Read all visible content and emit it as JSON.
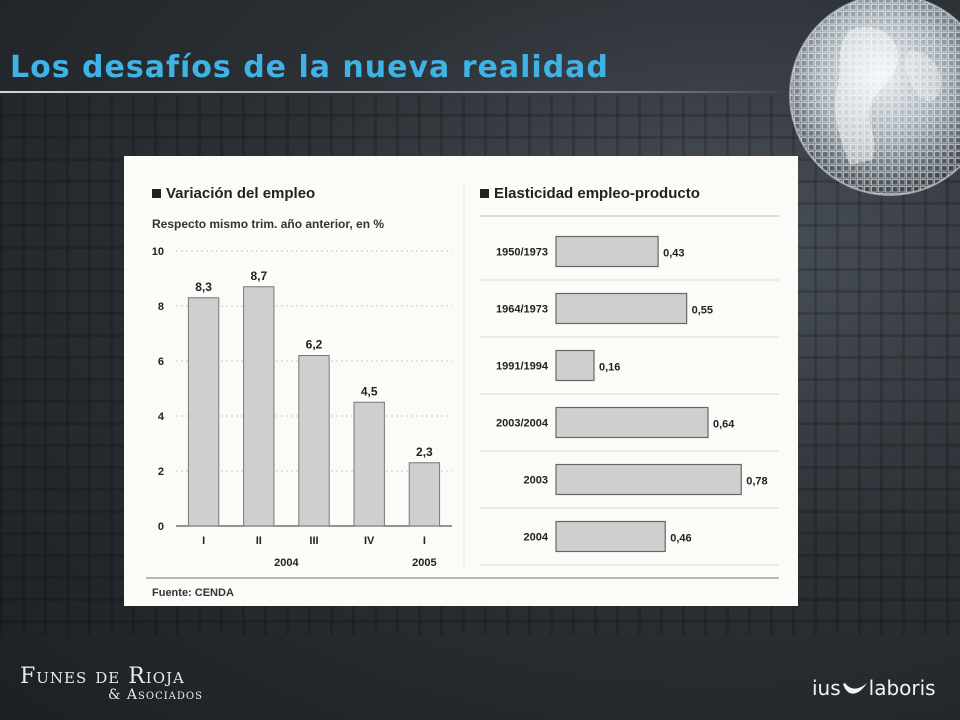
{
  "slide": {
    "title": "Los desafíos de la nueva realidad",
    "title_color": "#3fb3e6",
    "footer_left": {
      "name": "Funes de Rioja",
      "sub": "& Asociados"
    },
    "footer_right": {
      "left": "ius",
      "right": "laboris"
    }
  },
  "chart_data": [
    {
      "type": "bar",
      "title": "Variación del empleo",
      "subtitle": "Respecto mismo trim. año anterior, en %",
      "categories": [
        "I",
        "II",
        "III",
        "IV",
        "I"
      ],
      "group_labels": [
        {
          "label": "2004",
          "span": [
            0,
            3
          ]
        },
        {
          "label": "2005",
          "span": [
            4,
            4
          ]
        }
      ],
      "values": [
        8.3,
        8.7,
        6.2,
        4.5,
        2.3
      ],
      "value_labels": [
        "8,3",
        "8,7",
        "6,2",
        "4,5",
        "2,3"
      ],
      "ylim": [
        0,
        10
      ],
      "yticks": [
        "0",
        "2",
        "4",
        "6",
        "8",
        "10"
      ],
      "source": "Fuente: CENDA",
      "bar_color": "#cfcfcf"
    },
    {
      "type": "bar",
      "orientation": "horizontal",
      "title": "Elasticidad empleo-producto",
      "categories": [
        "1950/1973",
        "1964/1973",
        "1991/1994",
        "2003/2004",
        "2003",
        "2004"
      ],
      "values": [
        0.43,
        0.55,
        0.16,
        0.64,
        0.78,
        0.46
      ],
      "value_labels": [
        "0,43",
        "0,55",
        "0,16",
        "0,64",
        "0,78",
        "0,46"
      ],
      "bar_color": "#cfcfcf"
    }
  ]
}
